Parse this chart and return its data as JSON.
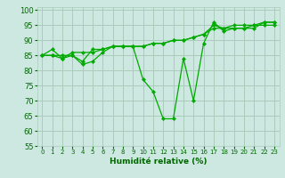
{
  "xlabel": "Humidité relative (%)",
  "background_color": "#cce8e0",
  "grid_color": "#aaccbb",
  "line_color": "#00aa00",
  "marker_color": "#00aa00",
  "xlim": [
    -0.5,
    23.5
  ],
  "ylim": [
    55,
    101
  ],
  "yticks": [
    55,
    60,
    65,
    70,
    75,
    80,
    85,
    90,
    95,
    100
  ],
  "xticks": [
    0,
    1,
    2,
    3,
    4,
    5,
    6,
    7,
    8,
    9,
    10,
    11,
    12,
    13,
    14,
    15,
    16,
    17,
    18,
    19,
    20,
    21,
    22,
    23
  ],
  "series": [
    [
      85,
      87,
      84,
      85,
      83,
      87,
      87,
      88,
      88,
      88,
      77,
      73,
      64,
      64,
      84,
      70,
      89,
      96,
      93,
      94,
      94,
      94,
      96,
      96
    ],
    [
      85,
      85,
      84,
      86,
      86,
      86,
      87,
      88,
      88,
      88,
      88,
      89,
      89,
      90,
      90,
      91,
      92,
      94,
      94,
      94,
      94,
      95,
      95,
      95
    ],
    [
      85,
      85,
      85,
      85,
      82,
      83,
      86,
      88,
      88,
      88,
      88,
      89,
      89,
      90,
      90,
      91,
      92,
      95,
      94,
      95,
      95,
      95,
      96,
      96
    ]
  ]
}
